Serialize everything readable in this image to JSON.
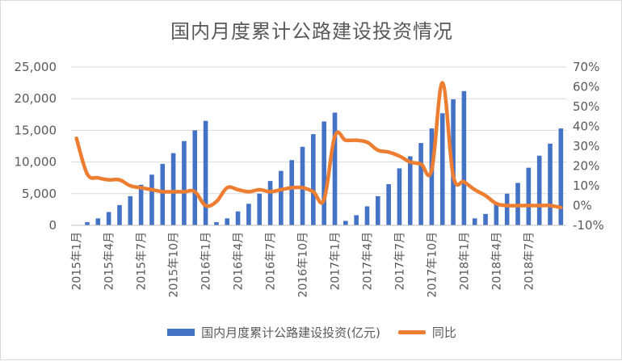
{
  "chart_data": {
    "type": "bar+line",
    "title": "国内月度累计公路建设投资情况",
    "colors": {
      "bar": "#4472c4",
      "line": "#ed7d31",
      "grid": "#d9d9d9",
      "text": "#595959"
    },
    "y_left": {
      "ticks": [
        "0",
        "5,000",
        "10,000",
        "15,000",
        "20,000",
        "25,000"
      ],
      "ylim": [
        0,
        25000
      ]
    },
    "y_right": {
      "ticks": [
        "-10%",
        "0%",
        "10%",
        "20%",
        "30%",
        "40%",
        "50%",
        "60%",
        "70%"
      ],
      "ylim": [
        -10,
        70
      ]
    },
    "x_tick_labels": [
      "2015年1月",
      "2015年4月",
      "2015年7月",
      "2015年10月",
      "2016年1月",
      "2016年4月",
      "2016年7月",
      "2016年10月",
      "2017年1月",
      "2017年4月",
      "2017年7月",
      "2017年10月",
      "2018年1月",
      "2018年4月",
      "2018年7月"
    ],
    "grid": true,
    "legend_position": "bottom",
    "categories": [
      "2015-1",
      "2015-2",
      "2015-3",
      "2015-4",
      "2015-5",
      "2015-6",
      "2015-7",
      "2015-8",
      "2015-9",
      "2015-10",
      "2015-11",
      "2015-12",
      "2016-1",
      "2016-2",
      "2016-3",
      "2016-4",
      "2016-5",
      "2016-6",
      "2016-7",
      "2016-8",
      "2016-9",
      "2016-10",
      "2016-11",
      "2016-12",
      "2017-1",
      "2017-2",
      "2017-3",
      "2017-4",
      "2017-5",
      "2017-6",
      "2017-7",
      "2017-8",
      "2017-9",
      "2017-10",
      "2017-11",
      "2017-12",
      "2018-1",
      "2018-2",
      "2018-3",
      "2018-4",
      "2018-5",
      "2018-6",
      "2018-7",
      "2018-8",
      "2018-9",
      "2018-10"
    ],
    "series": [
      {
        "name": "国内月度累计公路建设投资(亿元)",
        "type": "bar",
        "axis": "left",
        "values": [
          0,
          500,
          1100,
          2100,
          3200,
          4600,
          6400,
          8000,
          9700,
          11400,
          13300,
          15000,
          16500,
          500,
          1100,
          2200,
          3400,
          5000,
          7000,
          8600,
          10300,
          12400,
          14400,
          16400,
          17800,
          700,
          1600,
          3000,
          4600,
          6500,
          9000,
          10900,
          13000,
          15300,
          17700,
          19900,
          21200,
          1100,
          1800,
          3400,
          5000,
          6700,
          9100,
          11000,
          12900,
          15300
        ]
      },
      {
        "name": "同比",
        "type": "line",
        "axis": "right",
        "values": [
          34,
          16,
          14,
          13,
          13,
          10,
          9,
          8,
          7,
          7,
          7,
          7,
          0,
          2,
          9,
          8,
          7,
          8,
          7,
          8,
          9,
          9,
          7,
          3,
          35,
          33,
          33,
          32,
          28,
          27,
          25,
          22,
          21,
          18,
          62,
          15,
          12,
          8,
          5,
          1,
          0,
          0,
          0,
          0,
          0,
          -1
        ]
      }
    ]
  }
}
